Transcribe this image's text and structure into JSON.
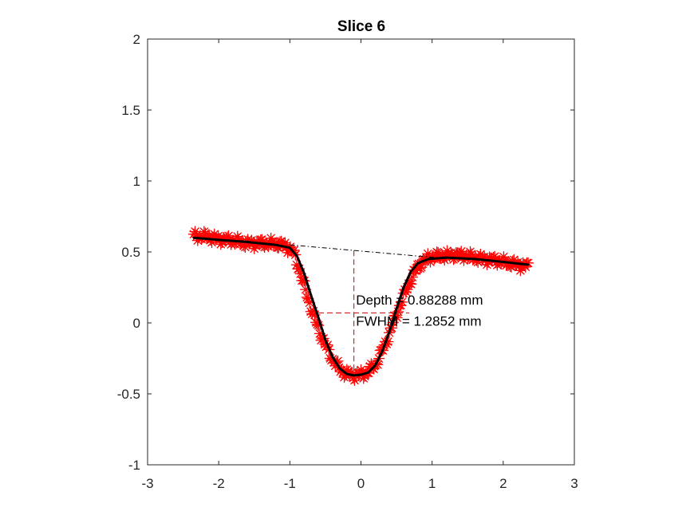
{
  "chart_data": {
    "type": "scatter",
    "title": "Slice 6",
    "xlabel": "",
    "ylabel": "",
    "xlim": [
      -3,
      3
    ],
    "ylim": [
      -1,
      2
    ],
    "xticks": [
      -3,
      -2,
      -1,
      0,
      1,
      2,
      3
    ],
    "yticks": [
      -1,
      -0.5,
      0,
      0.5,
      1,
      1.5,
      2
    ],
    "xtick_labels": [
      "-3",
      "-2",
      "-1",
      "0",
      "1",
      "2",
      "3"
    ],
    "ytick_labels": [
      "-1",
      "-0.5",
      "0",
      "0.5",
      "1",
      "1.5",
      "2"
    ],
    "series": [
      {
        "name": "measured profile",
        "style": "red asterisk markers",
        "color": "#ff0000",
        "x_range": [
          -2.35,
          2.35
        ],
        "sample_points": [
          {
            "x": -2.35,
            "y": 0.61
          },
          {
            "x": -2.2,
            "y": 0.61
          },
          {
            "x": -2.0,
            "y": 0.59
          },
          {
            "x": -1.8,
            "y": 0.58
          },
          {
            "x": -1.6,
            "y": 0.56
          },
          {
            "x": -1.4,
            "y": 0.56
          },
          {
            "x": -1.2,
            "y": 0.56
          },
          {
            "x": -1.05,
            "y": 0.54
          },
          {
            "x": -0.95,
            "y": 0.5
          },
          {
            "x": -0.85,
            "y": 0.35
          },
          {
            "x": -0.7,
            "y": 0.1
          },
          {
            "x": -0.55,
            "y": -0.1
          },
          {
            "x": -0.4,
            "y": -0.26
          },
          {
            "x": -0.25,
            "y": -0.35
          },
          {
            "x": -0.1,
            "y": -0.37
          },
          {
            "x": 0.05,
            "y": -0.36
          },
          {
            "x": 0.2,
            "y": -0.3
          },
          {
            "x": 0.35,
            "y": -0.14
          },
          {
            "x": 0.5,
            "y": 0.06
          },
          {
            "x": 0.65,
            "y": 0.25
          },
          {
            "x": 0.8,
            "y": 0.4
          },
          {
            "x": 0.95,
            "y": 0.46
          },
          {
            "x": 1.1,
            "y": 0.47
          },
          {
            "x": 1.3,
            "y": 0.48
          },
          {
            "x": 1.5,
            "y": 0.47
          },
          {
            "x": 1.7,
            "y": 0.45
          },
          {
            "x": 1.9,
            "y": 0.44
          },
          {
            "x": 2.1,
            "y": 0.42
          },
          {
            "x": 2.3,
            "y": 0.4
          }
        ]
      },
      {
        "name": "fitted curve",
        "style": "black solid line",
        "color": "#000000",
        "points": [
          {
            "x": -2.35,
            "y": 0.6
          },
          {
            "x": -2.0,
            "y": 0.585
          },
          {
            "x": -1.6,
            "y": 0.57
          },
          {
            "x": -1.2,
            "y": 0.55
          },
          {
            "x": -1.0,
            "y": 0.53
          },
          {
            "x": -0.9,
            "y": 0.47
          },
          {
            "x": -0.8,
            "y": 0.35
          },
          {
            "x": -0.7,
            "y": 0.19
          },
          {
            "x": -0.6,
            "y": 0.04
          },
          {
            "x": -0.5,
            "y": -0.12
          },
          {
            "x": -0.4,
            "y": -0.24
          },
          {
            "x": -0.3,
            "y": -0.32
          },
          {
            "x": -0.2,
            "y": -0.36
          },
          {
            "x": -0.1,
            "y": -0.37
          },
          {
            "x": 0.0,
            "y": -0.365
          },
          {
            "x": 0.1,
            "y": -0.35
          },
          {
            "x": 0.2,
            "y": -0.3
          },
          {
            "x": 0.3,
            "y": -0.2
          },
          {
            "x": 0.4,
            "y": -0.06
          },
          {
            "x": 0.5,
            "y": 0.1
          },
          {
            "x": 0.6,
            "y": 0.25
          },
          {
            "x": 0.7,
            "y": 0.36
          },
          {
            "x": 0.8,
            "y": 0.42
          },
          {
            "x": 0.95,
            "y": 0.45
          },
          {
            "x": 1.2,
            "y": 0.46
          },
          {
            "x": 1.6,
            "y": 0.45
          },
          {
            "x": 2.0,
            "y": 0.43
          },
          {
            "x": 2.35,
            "y": 0.41
          }
        ]
      },
      {
        "name": "baseline",
        "style": "black dash-dot line",
        "color": "#000000",
        "points": [
          {
            "x": -1.0,
            "y": 0.55
          },
          {
            "x": 1.05,
            "y": 0.46
          }
        ]
      },
      {
        "name": "depth line",
        "style": "red dashed line",
        "color": "#d62728",
        "points": [
          {
            "x": -0.1,
            "y": 0.51
          },
          {
            "x": -0.1,
            "y": -0.37
          }
        ]
      },
      {
        "name": "FWHM line",
        "style": "red dashed line",
        "color": "#d62728",
        "points": [
          {
            "x": -0.6,
            "y": 0.07
          },
          {
            "x": 0.68,
            "y": 0.07
          }
        ]
      }
    ],
    "annotations": [
      {
        "text": "Depth = 0.88288 mm",
        "x": -0.07,
        "y": 0.13
      },
      {
        "text": "FWHM = 1.2852 mm",
        "x": -0.07,
        "y": -0.02
      }
    ],
    "grid": false,
    "legend": "none"
  }
}
